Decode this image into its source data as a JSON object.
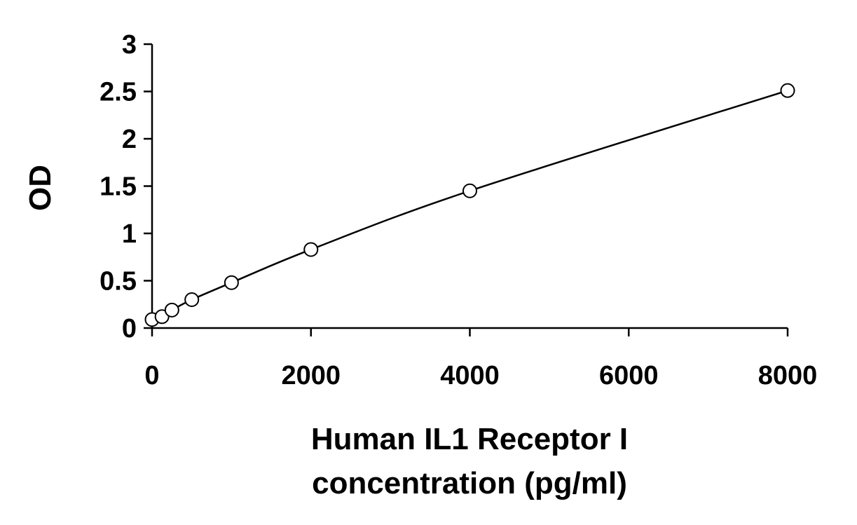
{
  "chart_data": {
    "type": "scatter",
    "xlabel": [
      "Human IL1 Receptor I",
      "concentration (pg/ml)"
    ],
    "ylabel": "OD",
    "xlim": [
      0,
      8000
    ],
    "ylim": [
      0,
      3
    ],
    "x_ticks": [
      0,
      2000,
      4000,
      6000,
      8000
    ],
    "y_ticks": [
      0,
      0.5,
      1,
      1.5,
      2,
      2.5,
      3
    ],
    "x_tick_labels": [
      "0",
      "2000",
      "4000",
      "6000",
      "8000"
    ],
    "y_tick_labels": [
      "0",
      "0.5",
      "1",
      "1.5",
      "2",
      "2.5",
      "3"
    ],
    "grid": false,
    "legend": "none",
    "series": [
      {
        "marker": "open-circle",
        "fit_line": "smooth",
        "points": [
          {
            "x": 0,
            "y": 0.09
          },
          {
            "x": 125,
            "y": 0.12
          },
          {
            "x": 250,
            "y": 0.19
          },
          {
            "x": 500,
            "y": 0.3
          },
          {
            "x": 1000,
            "y": 0.48
          },
          {
            "x": 2000,
            "y": 0.83
          },
          {
            "x": 4000,
            "y": 1.45
          },
          {
            "x": 8000,
            "y": 2.51
          }
        ]
      }
    ],
    "colors": {
      "axis": "#000000",
      "marker_stroke": "#000000",
      "marker_fill": "#ffffff",
      "line": "#000000"
    }
  }
}
